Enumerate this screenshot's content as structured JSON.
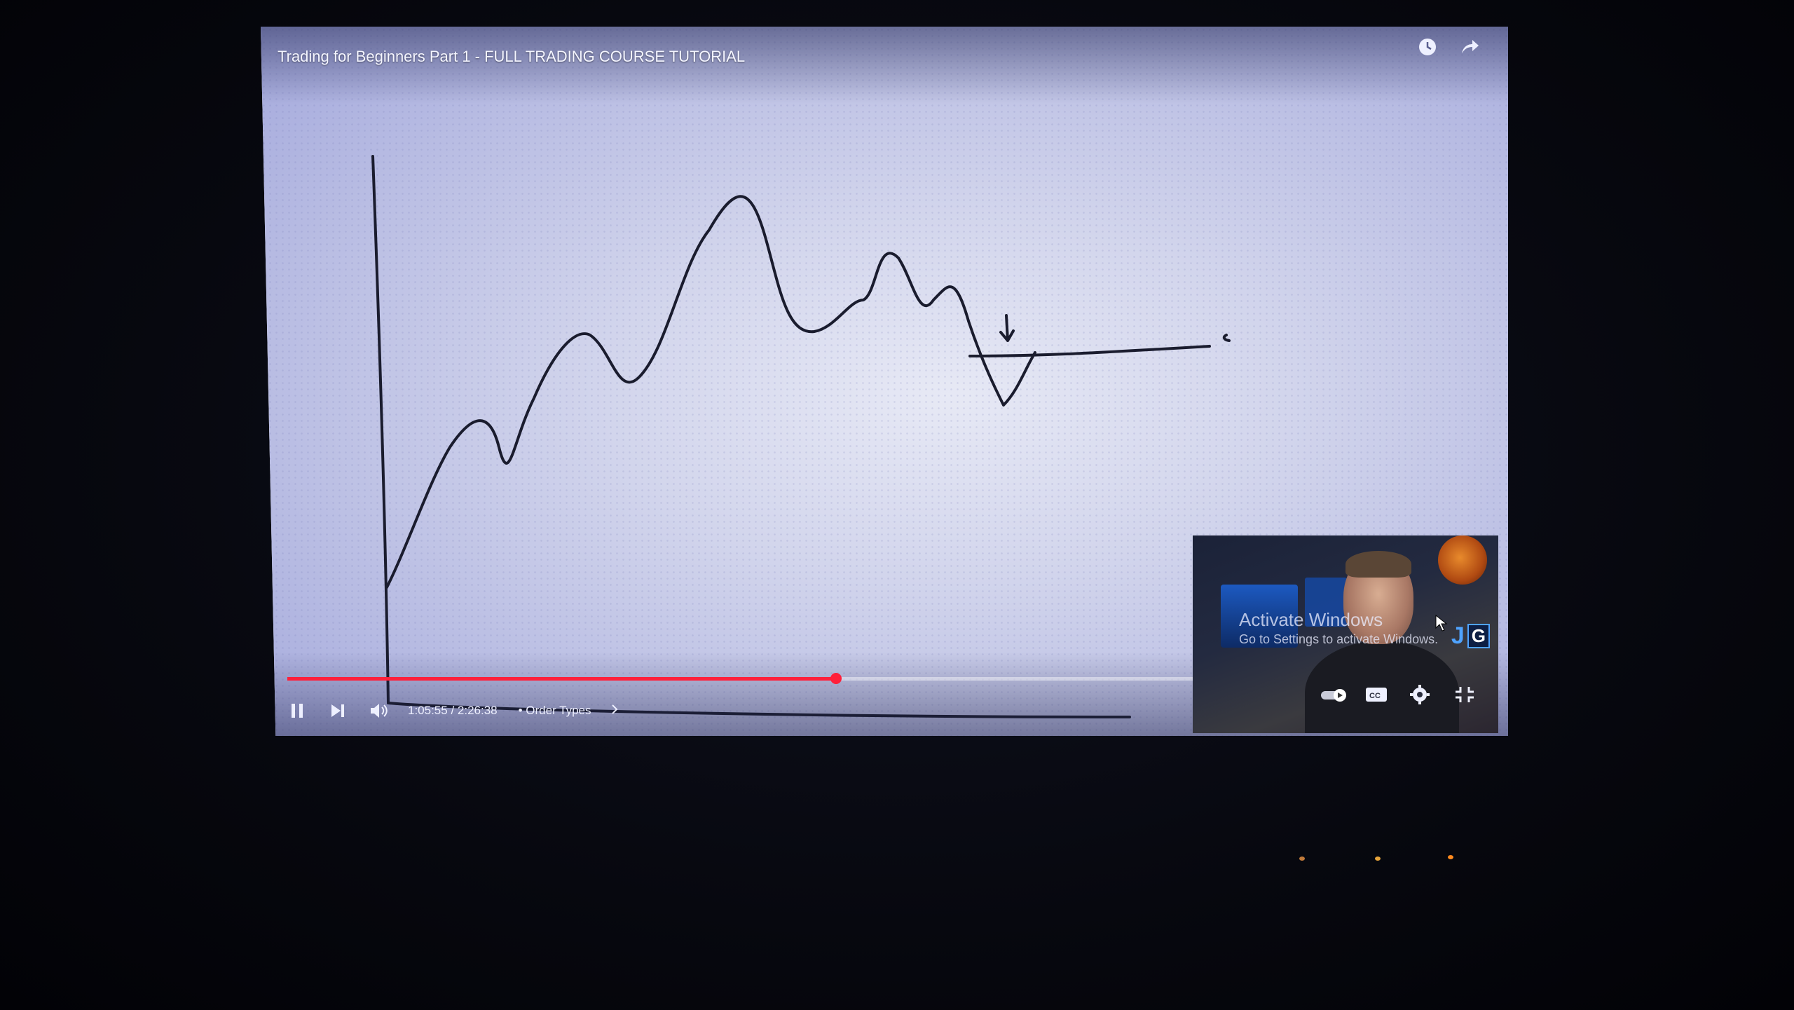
{
  "video": {
    "title": "Trading for Beginners Part 1 - FULL TRADING COURSE TUTORIAL",
    "progress_fraction": 0.46
  },
  "top_icons": [
    "watch-later-icon",
    "share-icon"
  ],
  "controls": {
    "icons": [
      "pause-icon",
      "next-icon",
      "volume-icon"
    ],
    "time": "1:05:55 / 2:26:38",
    "chapter": "• Order Types"
  },
  "overlay": {
    "activate_title": "Activate Windows",
    "activate_sub": "Go to Settings to activate Windows.",
    "logo_letters": [
      "J",
      "G"
    ],
    "right_icons": [
      "autoplay-toggle-icon",
      "captions-icon",
      "settings-gear-icon",
      "exit-fullscreen-icon"
    ]
  },
  "colors": {
    "progress": "#ff1f3a",
    "ink": "#1a1c2e",
    "screen": "#d2d5ec"
  }
}
